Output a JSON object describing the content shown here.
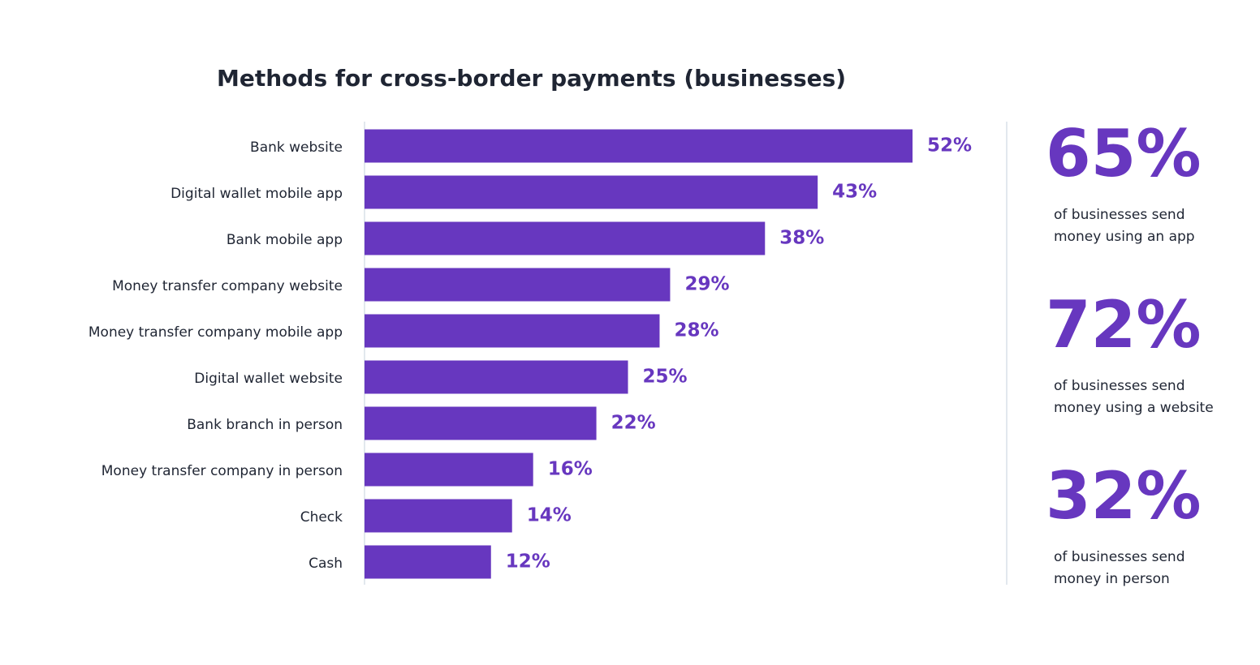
{
  "chart_data": {
    "type": "bar",
    "orientation": "horizontal",
    "title": "Methods for cross-border payments (businesses)",
    "categories": [
      "Bank website",
      "Digital wallet mobile app",
      "Bank mobile app",
      "Money transfer company website",
      "Money transfer company mobile app",
      "Digital wallet website",
      "Bank branch in person",
      "Money transfer company in person",
      "Check",
      "Cash"
    ],
    "values": [
      52,
      43,
      38,
      29,
      28,
      25,
      22,
      16,
      14,
      12
    ],
    "value_labels": [
      "52%",
      "43%",
      "38%",
      "29%",
      "28%",
      "25%",
      "22%",
      "16%",
      "14%",
      "12%"
    ],
    "color": "#6737bf"
  },
  "highlights": [
    {
      "figure": "65%",
      "lines": [
        "of businesses send",
        "money using an app"
      ]
    },
    {
      "figure": "72%",
      "lines": [
        "of businesses send",
        "money using a website"
      ]
    },
    {
      "figure": "32%",
      "lines": [
        "of businesses send",
        "money in person"
      ]
    }
  ]
}
